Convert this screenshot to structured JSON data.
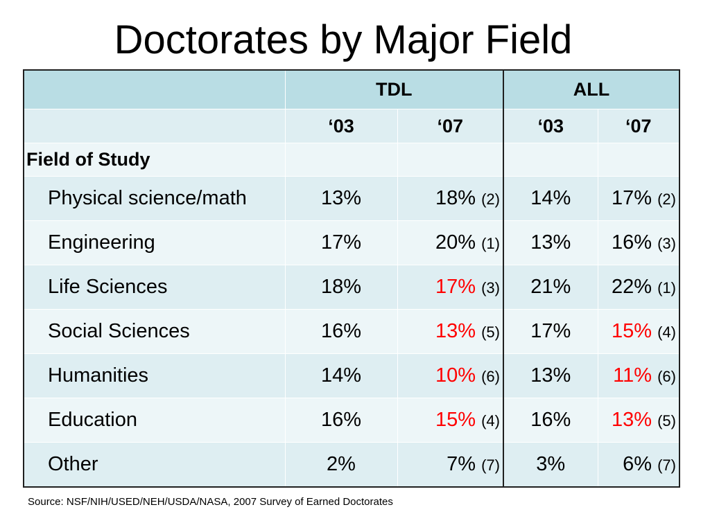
{
  "title": "Doctorates by Major Field",
  "source": "Source: NSF/NIH/USED/NEH/USDA/NASA, 2007 Survey of Earned Doctorates",
  "chart_data": {
    "type": "table",
    "title": "Doctorates by Major Field",
    "groups": [
      "TDL",
      "ALL"
    ],
    "years": [
      "‘03",
      "‘07",
      "‘03",
      "‘07"
    ],
    "row_header": "Field of Study",
    "rows": [
      {
        "field": "Physical science/math",
        "tdl03": "13%",
        "tdl07": "18%",
        "tdl07_rank": "(2)",
        "tdl07_red": false,
        "all03": "14%",
        "all07": "17%",
        "all07_rank": "(2)",
        "all07_red": false
      },
      {
        "field": "Engineering",
        "tdl03": "17%",
        "tdl07": "20%",
        "tdl07_rank": "(1)",
        "tdl07_red": false,
        "all03": "13%",
        "all07": "16%",
        "all07_rank": "(3)",
        "all07_red": false
      },
      {
        "field": "Life Sciences",
        "tdl03": "18%",
        "tdl07": "17%",
        "tdl07_rank": "(3)",
        "tdl07_red": true,
        "all03": "21%",
        "all07": "22%",
        "all07_rank": "(1)",
        "all07_red": false
      },
      {
        "field": "Social Sciences",
        "tdl03": "16%",
        "tdl07": "13%",
        "tdl07_rank": "(5)",
        "tdl07_red": true,
        "all03": "17%",
        "all07": "15%",
        "all07_rank": "(4)",
        "all07_red": true
      },
      {
        "field": "Humanities",
        "tdl03": "14%",
        "tdl07": "10%",
        "tdl07_rank": "(6)",
        "tdl07_red": true,
        "all03": "13%",
        "all07": "11%",
        "all07_rank": "(6)",
        "all07_red": true
      },
      {
        "field": "Education",
        "tdl03": "16%",
        "tdl07": "15%",
        "tdl07_rank": "(4)",
        "tdl07_red": true,
        "all03": "16%",
        "all07": "13%",
        "all07_rank": "(5)",
        "all07_red": true
      },
      {
        "field": "Other",
        "tdl03": "2%",
        "tdl07": "7%",
        "tdl07_rank": "(7)",
        "tdl07_red": false,
        "all03": "3%",
        "all07": "6%",
        "all07_rank": "(7)",
        "all07_red": false
      }
    ],
    "colors": {
      "decline": "#ff0000",
      "header": "#b9dde4",
      "row_a": "#deeef2",
      "row_b": "#edf6f8"
    }
  }
}
